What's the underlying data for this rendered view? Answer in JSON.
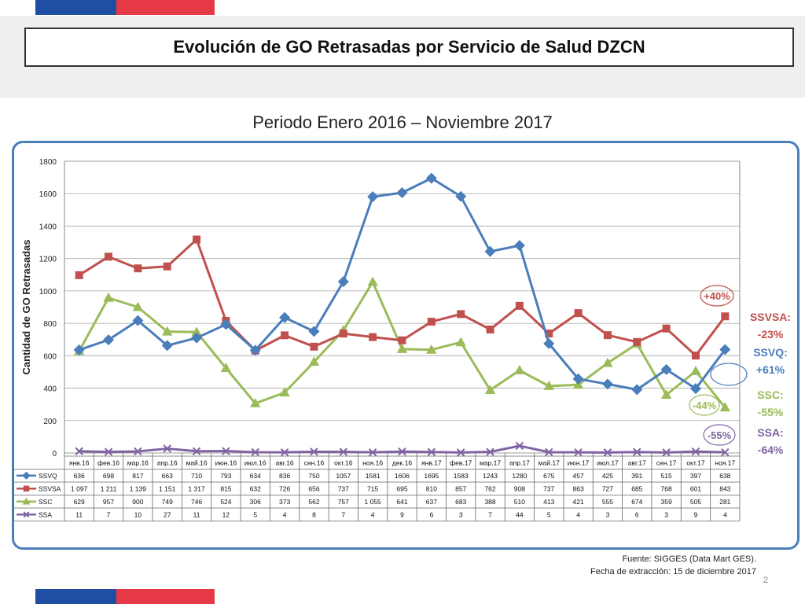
{
  "slide": {
    "title": "Evolución de GO Retrasadas por Servicio de Salud DZCN",
    "subtitle": "Periodo Enero 2016 – Noviembre 2017",
    "footer_source": "Fuente: SIGGES (Data Mart GES).",
    "footer_date": "Fecha de extracción: 15 de diciembre 2017",
    "page_number": "2"
  },
  "colors": {
    "flag_blue": "#1f4fa3",
    "flag_red": "#e63946",
    "frame": "#4a7ebb",
    "SSVQ": "#4a7ebb",
    "SSVSA": "#c0504d",
    "SSC": "#9bbb59",
    "SSA": "#8064a2"
  },
  "chart_data": {
    "type": "line",
    "title": "",
    "xlabel": "",
    "ylabel": "Cantidad de GO Retrasadas",
    "ylim": [
      0,
      1800
    ],
    "yticks": [
      0,
      200,
      400,
      600,
      800,
      1000,
      1200,
      1400,
      1600,
      1800
    ],
    "grid": true,
    "categories": [
      "янв.16",
      "фев.16",
      "мар.16",
      "апр.16",
      "май.16",
      "июн.16",
      "июл.16",
      "авг.16",
      "сен.16",
      "окт.16",
      "ноя.16",
      "дек.16",
      "янв.17",
      "фев.17",
      "мар.17",
      "апр.17",
      "май.17",
      "июн.17",
      "июл.17",
      "авг.17",
      "сен.17",
      "окт.17",
      "ноя.17"
    ],
    "series": [
      {
        "name": "SSVQ",
        "marker": "diamond",
        "values": [
          636,
          698,
          817,
          663,
          710,
          793,
          634,
          836,
          750,
          1057,
          1581,
          1606,
          1695,
          1583,
          1243,
          1280,
          675,
          457,
          425,
          391,
          515,
          397,
          638
        ],
        "labels": [
          "636",
          "698",
          "817",
          "663",
          "710",
          "793",
          "634",
          "836",
          "750",
          "1057",
          "1581",
          "1606",
          "1695",
          "1583",
          "1243",
          "1280",
          "675",
          "457",
          "425",
          "391",
          "515",
          "397",
          "638"
        ]
      },
      {
        "name": "SSVSA",
        "marker": "square",
        "values": [
          1097,
          1211,
          1139,
          1151,
          1317,
          815,
          632,
          726,
          656,
          737,
          715,
          695,
          810,
          857,
          762,
          908,
          737,
          863,
          727,
          685,
          768,
          601,
          843
        ],
        "labels": [
          "1 097",
          "1 211",
          "1 139",
          "1 151",
          "1 317",
          "815",
          "632",
          "726",
          "656",
          "737",
          "715",
          "695",
          "810",
          "857",
          "762",
          "908",
          "737",
          "863",
          "727",
          "685",
          "768",
          "601",
          "843"
        ]
      },
      {
        "name": "SSC",
        "marker": "triangle",
        "values": [
          629,
          957,
          900,
          749,
          746,
          524,
          306,
          373,
          562,
          757,
          1055,
          641,
          637,
          683,
          388,
          510,
          413,
          421,
          555,
          674,
          359,
          505,
          281
        ],
        "labels": [
          "629",
          "957",
          "900",
          "749",
          "746",
          "524",
          "306",
          "373",
          "562",
          "757",
          "1 055",
          "641",
          "637",
          "683",
          "388",
          "510",
          "413",
          "421",
          "555",
          "674",
          "359",
          "505",
          "281"
        ]
      },
      {
        "name": "SSA",
        "marker": "x",
        "values": [
          11,
          7,
          10,
          27,
          11,
          12,
          5,
          4,
          8,
          7,
          4,
          9,
          6,
          3,
          7,
          44,
          5,
          4,
          3,
          6,
          3,
          9,
          4
        ],
        "labels": [
          "11",
          "7",
          "10",
          "27",
          "11",
          "12",
          "5",
          "4",
          "8",
          "7",
          "4",
          "9",
          "6",
          "3",
          "7",
          "44",
          "5",
          "4",
          "3",
          "6",
          "3",
          "9",
          "4"
        ]
      }
    ],
    "annotations": [
      {
        "text": "+40%",
        "series": "SSVSA",
        "circled": true
      },
      {
        "text": "-44%",
        "series": "SSC",
        "circled": true
      },
      {
        "text": "-55%",
        "series": "SSA",
        "circled": true
      },
      {
        "text": "",
        "series": "SSVQ",
        "circled": true
      }
    ],
    "side_labels": [
      {
        "series": "SSVSA",
        "line1": "SSVSA:",
        "line2": "-23%"
      },
      {
        "series": "SSVQ",
        "line1": "SSVQ:",
        "line2": "+61%"
      },
      {
        "series": "SSC",
        "line1": "SSC:",
        "line2": "-55%"
      },
      {
        "series": "SSA",
        "line1": "SSA:",
        "line2": "-64%"
      }
    ]
  }
}
